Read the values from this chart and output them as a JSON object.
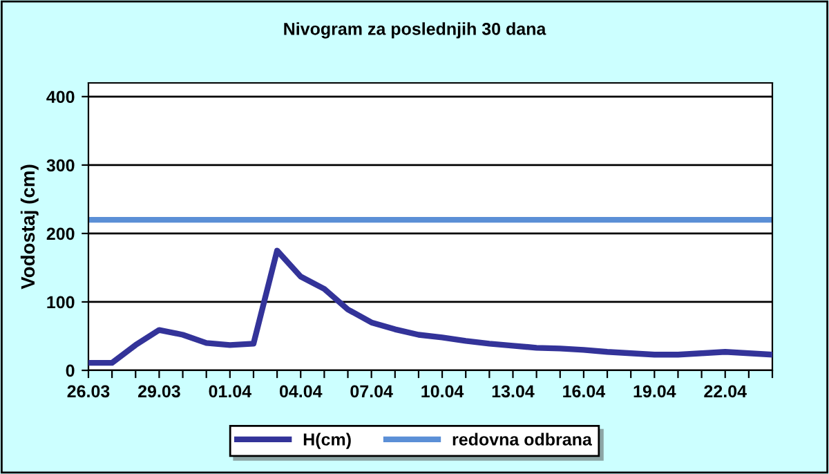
{
  "chart_data": {
    "type": "line",
    "title": "Nivogram za poslednjih 30 dana",
    "ylabel": "Vodostaj (cm)",
    "categories": [
      "26.03",
      null,
      null,
      "29.03",
      null,
      null,
      "01.04",
      null,
      null,
      "04.04",
      null,
      null,
      "07.04",
      null,
      null,
      "10.04",
      null,
      null,
      "13.04",
      null,
      null,
      "16.04",
      null,
      null,
      "19.04",
      null,
      null,
      "22.04",
      null,
      null
    ],
    "series": [
      {
        "name": "H(cm)",
        "color": "#333399",
        "values": [
          11,
          11,
          37,
          59,
          52,
          40,
          37,
          39,
          175,
          137,
          119,
          89,
          70,
          60,
          52,
          48,
          43,
          39,
          36,
          33,
          32,
          30,
          27,
          25,
          23,
          23,
          25,
          27,
          25,
          23
        ]
      }
    ],
    "ref_lines": [
      {
        "axis": "y",
        "value": 220,
        "label": "redovna odbrana",
        "color": "#5b8fd6"
      }
    ],
    "ylim": [
      0,
      420
    ],
    "yticks": [
      0,
      100,
      200,
      300,
      400
    ],
    "grid": "y",
    "legend": "bottom",
    "marker": "none",
    "line_style": "solid"
  }
}
